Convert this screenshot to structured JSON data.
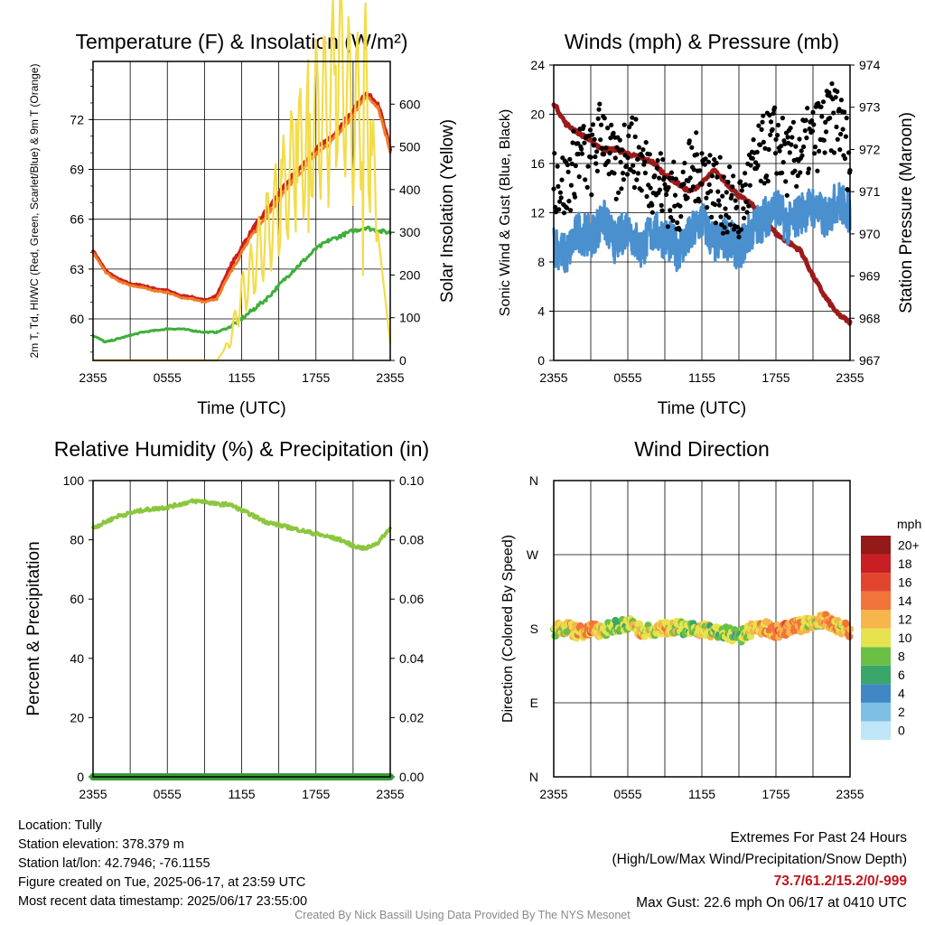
{
  "footer": {
    "location": "Location: Tully",
    "elevation": "Station elevation: 378.379 m",
    "latlon": "Station lat/lon: 42.7946; -76.1155",
    "created": "Figure created on Tue, 2025-06-17, at 23:59 UTC",
    "recent": "Most recent data timestamp: 2025/06/17 23:55:00",
    "extremes_title": "Extremes For Past 24 Hours",
    "extremes_legend": "(High/Low/Max Wind/Precipitation/Snow Depth)",
    "extremes_values": "73.7/61.2/15.2/0/-999",
    "max_gust": "Max Gust: 22.6 mph On 06/17 at 0410 UTC",
    "credit": "Created By Nick Bassill Using Data Provided By The NYS Mesonet"
  },
  "chart_data": [
    {
      "type": "line",
      "title": "Temperature (F) & Insolation (W/m²)",
      "xlabel": "Time (UTC)",
      "ylabel": "2m T, Td, HI/WC (Red, Green, Scarlet/Blue) & 9m T (Orange)",
      "ylabel_right": "Solar Insolation (Yellow)",
      "x_ticks": [
        "2355",
        "0555",
        "1155",
        "1755",
        "2355"
      ],
      "ylim": [
        57.5,
        75.5
      ],
      "y_ticks": [
        60,
        63,
        66,
        69,
        72
      ],
      "ylim_right": [
        0,
        700
      ],
      "y_ticks_right": [
        0,
        100,
        200,
        300,
        400,
        500,
        600
      ],
      "grid": true,
      "x": [
        0,
        1,
        2,
        3,
        4,
        5,
        6,
        7,
        8,
        9,
        10,
        11,
        12,
        13,
        14,
        15,
        16,
        17,
        18,
        19,
        20,
        21,
        22,
        23,
        24
      ],
      "series": [
        {
          "key": "temp_2m",
          "color": "#cc1f1f",
          "axis": "left",
          "values": [
            64.1,
            62.9,
            62.4,
            62.1,
            62.0,
            61.8,
            61.7,
            61.4,
            61.3,
            61.1,
            61.4,
            63.0,
            64.3,
            65.5,
            66.5,
            67.5,
            68.5,
            69.3,
            70.2,
            70.8,
            71.6,
            72.5,
            73.6,
            73.0,
            70.2
          ]
        },
        {
          "key": "temp_9m",
          "color": "#f07d25",
          "axis": "left",
          "values": [
            64.0,
            62.8,
            62.3,
            62.0,
            61.9,
            61.7,
            61.6,
            61.3,
            61.2,
            61.0,
            61.2,
            62.7,
            64.0,
            65.2,
            66.2,
            67.2,
            68.2,
            69.0,
            69.9,
            70.5,
            71.3,
            72.2,
            73.4,
            72.8,
            70.1
          ]
        },
        {
          "key": "dewpoint",
          "color": "#3fae3a",
          "axis": "left",
          "values": [
            59.0,
            58.6,
            58.8,
            59.0,
            59.2,
            59.3,
            59.4,
            59.4,
            59.3,
            59.2,
            59.2,
            59.5,
            60.0,
            60.6,
            61.2,
            62.0,
            62.8,
            63.5,
            64.2,
            64.7,
            65.0,
            65.3,
            65.5,
            65.3,
            65.2
          ]
        },
        {
          "key": "insolation",
          "color": "#f3dc4b",
          "axis": "right",
          "values": [
            0,
            0,
            0,
            0,
            0,
            0,
            0,
            0,
            0,
            0,
            0,
            40,
            150,
            220,
            300,
            360,
            440,
            500,
            560,
            600,
            690,
            560,
            620,
            300,
            40
          ],
          "spikes": [
            [
              15.2,
              470
            ],
            [
              16.4,
              560
            ],
            [
              17.4,
              300
            ],
            [
              18.2,
              620
            ],
            [
              19.0,
              360
            ],
            [
              19.6,
              690
            ],
            [
              20.4,
              480
            ],
            [
              21.2,
              620
            ],
            [
              21.8,
              200
            ],
            [
              22.4,
              560
            ]
          ]
        }
      ]
    },
    {
      "type": "line",
      "title": "Winds (mph) & Pressure (mb)",
      "xlabel": "Time (UTC)",
      "ylabel": "Sonic Wind & Gust (Blue, Black)",
      "ylabel_right": "Station Pressure (Maroon)",
      "x_ticks": [
        "2355",
        "0555",
        "1155",
        "1755",
        "2355"
      ],
      "ylim": [
        0,
        24
      ],
      "y_ticks": [
        0,
        4,
        8,
        12,
        16,
        20,
        24
      ],
      "ylim_right": [
        967,
        974
      ],
      "y_ticks_right": [
        967,
        968,
        969,
        970,
        971,
        972,
        973,
        974
      ],
      "grid": true,
      "x": [
        0,
        1,
        2,
        3,
        4,
        5,
        6,
        7,
        8,
        9,
        10,
        11,
        12,
        13,
        14,
        15,
        16,
        17,
        18,
        19,
        20,
        21,
        22,
        23,
        24
      ],
      "series": [
        {
          "key": "pressure",
          "color": "#9b1b1b",
          "axis": "right",
          "values": [
            973.1,
            972.6,
            972.4,
            972.2,
            972.0,
            972.0,
            971.9,
            971.8,
            971.7,
            971.4,
            971.2,
            971.0,
            971.2,
            971.5,
            971.2,
            970.9,
            970.7,
            970.4,
            970.0,
            969.8,
            969.6,
            969.0,
            968.5,
            968.1,
            967.9
          ]
        },
        {
          "key": "wind",
          "color": "#4a90cf",
          "axis": "left",
          "values": [
            9.5,
            8.5,
            10.5,
            10.0,
            11.5,
            9.5,
            11.0,
            9.0,
            10.5,
            10.0,
            9.0,
            10.0,
            11.5,
            9.5,
            10.0,
            9.0,
            10.5,
            11.5,
            12.5,
            11.0,
            12.0,
            12.5,
            11.5,
            13.0,
            12.0
          ]
        },
        {
          "key": "gust",
          "color": "#000000",
          "axis": "left",
          "style": "points",
          "values": [
            15,
            14,
            17,
            16,
            19,
            15,
            18,
            16,
            15,
            14,
            13,
            15,
            16,
            14,
            13,
            12,
            15,
            17,
            18,
            16,
            17,
            18,
            19,
            20,
            16
          ]
        }
      ]
    },
    {
      "type": "line",
      "title": "Relative Humidity (%) & Precipitation (in)",
      "ylabel": "Percent & Precipitation",
      "x_ticks": [
        "2355",
        "0555",
        "1155",
        "1755",
        "2355"
      ],
      "ylim": [
        0,
        100
      ],
      "y_ticks": [
        0,
        20,
        40,
        60,
        80,
        100
      ],
      "ylim_right": [
        0.0,
        0.1
      ],
      "y_ticks_right": [
        "0.00",
        "0.02",
        "0.04",
        "0.06",
        "0.08",
        "0.10"
      ],
      "grid": true,
      "x": [
        0,
        1,
        2,
        3,
        4,
        5,
        6,
        7,
        8,
        9,
        10,
        11,
        12,
        13,
        14,
        15,
        16,
        17,
        18,
        19,
        20,
        21,
        22,
        23,
        24
      ],
      "series": [
        {
          "key": "rh",
          "color": "#8cc63e",
          "axis": "left",
          "values": [
            84,
            86,
            88,
            89,
            90,
            90.5,
            91,
            92,
            93,
            93,
            92,
            92,
            90,
            88,
            86,
            85,
            84,
            83,
            82,
            81,
            80,
            78,
            77,
            79,
            84
          ]
        },
        {
          "key": "precip",
          "color": "#3a9a3a",
          "axis": "right",
          "values": [
            0,
            0,
            0,
            0,
            0,
            0,
            0,
            0,
            0,
            0,
            0,
            0,
            0,
            0,
            0,
            0,
            0,
            0,
            0,
            0,
            0,
            0,
            0,
            0,
            0
          ]
        }
      ]
    },
    {
      "type": "scatter",
      "title": "Wind Direction",
      "ylabel": "Direction (Colored By Speed)",
      "x_ticks": [
        "2355",
        "0555",
        "1155",
        "1755",
        "2355"
      ],
      "y_ticks": [
        "N",
        "E",
        "S",
        "W",
        "N"
      ],
      "ylim": [
        0,
        360
      ],
      "grid": true,
      "legend": {
        "title": "mph",
        "placement": "right",
        "labels": [
          "0",
          "2",
          "4",
          "6",
          "8",
          "10",
          "12",
          "14",
          "16",
          "18",
          "20+"
        ],
        "colors": [
          "#bfe6f7",
          "#7fbfe5",
          "#3f88c5",
          "#3aa66a",
          "#6bbf45",
          "#e6e34f",
          "#f7b54b",
          "#f1753b",
          "#e2452d",
          "#c81e24",
          "#951919"
        ]
      },
      "x": [
        0,
        1,
        2,
        3,
        4,
        5,
        6,
        7,
        8,
        9,
        10,
        11,
        12,
        13,
        14,
        15,
        16,
        17,
        18,
        19,
        20,
        21,
        22,
        23,
        24
      ],
      "direction": [
        178,
        182,
        175,
        180,
        177,
        184,
        186,
        179,
        176,
        181,
        183,
        178,
        180,
        176,
        174,
        170,
        178,
        182,
        176,
        180,
        184,
        188,
        190,
        183,
        178
      ],
      "speed": [
        9,
        11,
        12,
        13,
        10,
        8,
        9,
        11,
        10,
        12,
        9,
        8,
        10,
        9,
        8,
        7,
        11,
        12,
        13,
        14,
        12,
        10,
        13,
        11,
        12
      ]
    }
  ]
}
